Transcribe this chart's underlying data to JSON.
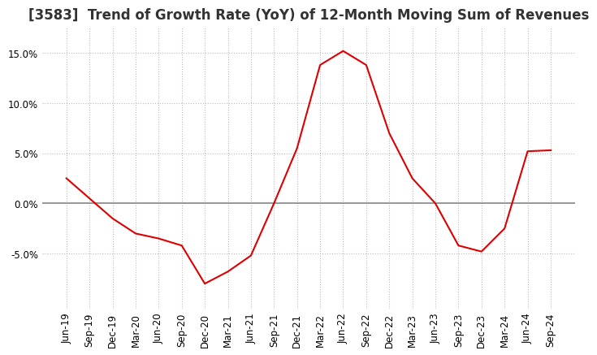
{
  "title": "[3583]  Trend of Growth Rate (YoY) of 12-Month Moving Sum of Revenues",
  "x_labels": [
    "Jun-19",
    "Sep-19",
    "Dec-19",
    "Mar-20",
    "Jun-20",
    "Sep-20",
    "Dec-20",
    "Mar-21",
    "Jun-21",
    "Sep-21",
    "Dec-21",
    "Mar-22",
    "Jun-22",
    "Sep-22",
    "Dec-22",
    "Mar-23",
    "Jun-23",
    "Sep-23",
    "Dec-23",
    "Mar-24",
    "Jun-24",
    "Sep-24"
  ],
  "y_values": [
    2.5,
    0.5,
    -1.5,
    -3.0,
    -3.5,
    -4.2,
    -8.0,
    -6.8,
    -5.2,
    0.0,
    5.5,
    13.8,
    15.2,
    13.8,
    7.0,
    2.5,
    0.0,
    -4.2,
    -4.8,
    -2.5,
    5.2,
    5.3
  ],
  "line_color": "#dd0000",
  "ylim": [
    -10.5,
    17.5
  ],
  "yticks": [
    -5.0,
    0.0,
    5.0,
    10.0,
    15.0
  ],
  "background_color": "#ffffff",
  "grid_color": "#bbbbbb",
  "title_fontsize": 12,
  "tick_fontsize": 8.5
}
